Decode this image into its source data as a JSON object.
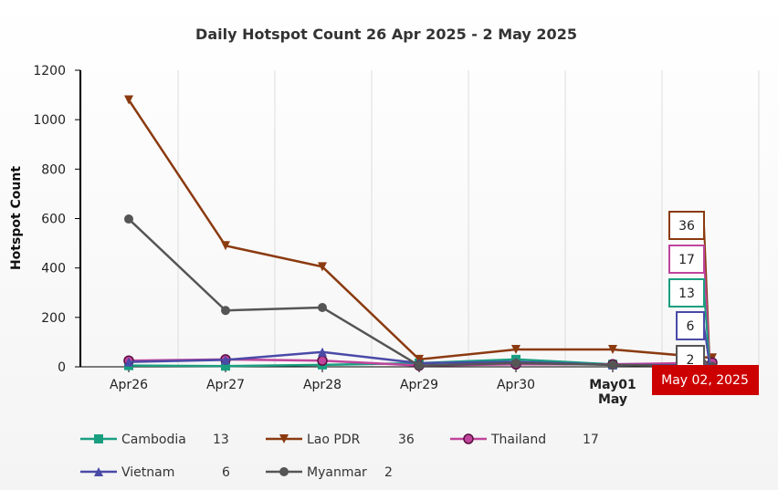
{
  "chart_data": {
    "type": "line",
    "title": "Daily Hotspot Count 26 Apr 2025 - 2 May 2025",
    "ylabel": "Hotspot Count",
    "xlabel": "",
    "ylim": [
      0,
      1200
    ],
    "yticks": [
      0,
      200,
      400,
      600,
      800,
      1000,
      1200
    ],
    "categories": [
      "Apr26",
      "Apr27",
      "Apr28",
      "Apr29",
      "Apr30",
      "May01",
      "May 02"
    ],
    "x_tick_labels": [
      "Apr26",
      "Apr27",
      "Apr28",
      "Apr29",
      "Apr30",
      "May01"
    ],
    "month_label": "May",
    "grid": true,
    "legend_position": "bottom",
    "tooltip": "May 02, 2025",
    "series": [
      {
        "name": "Cambodia",
        "total": 13,
        "color": "#1a9e80",
        "marker": "square",
        "values": [
          5,
          3,
          8,
          15,
          30,
          10,
          13
        ]
      },
      {
        "name": "Lao PDR",
        "total": 36,
        "color": "#8b3a10",
        "marker": "triangle-down",
        "values": [
          1080,
          490,
          405,
          30,
          70,
          70,
          36
        ]
      },
      {
        "name": "Thailand",
        "total": 17,
        "color": "#c0449c",
        "marker": "circle",
        "values": [
          25,
          30,
          25,
          5,
          10,
          10,
          17
        ]
      },
      {
        "name": "Vietnam",
        "total": 6,
        "color": "#4a4aa8",
        "marker": "triangle-up",
        "values": [
          20,
          28,
          60,
          15,
          20,
          8,
          6
        ]
      },
      {
        "name": "Myanmar",
        "total": 2,
        "color": "#555555",
        "marker": "circle",
        "values": [
          598,
          228,
          240,
          5,
          15,
          8,
          2
        ]
      }
    ],
    "end_tags": [
      {
        "series": "Lao PDR",
        "value": "36"
      },
      {
        "series": "Thailand",
        "value": "17"
      },
      {
        "series": "Cambodia",
        "value": "13"
      },
      {
        "series": "Vietnam",
        "value": "6"
      },
      {
        "series": "Myanmar",
        "value": "2"
      }
    ]
  }
}
